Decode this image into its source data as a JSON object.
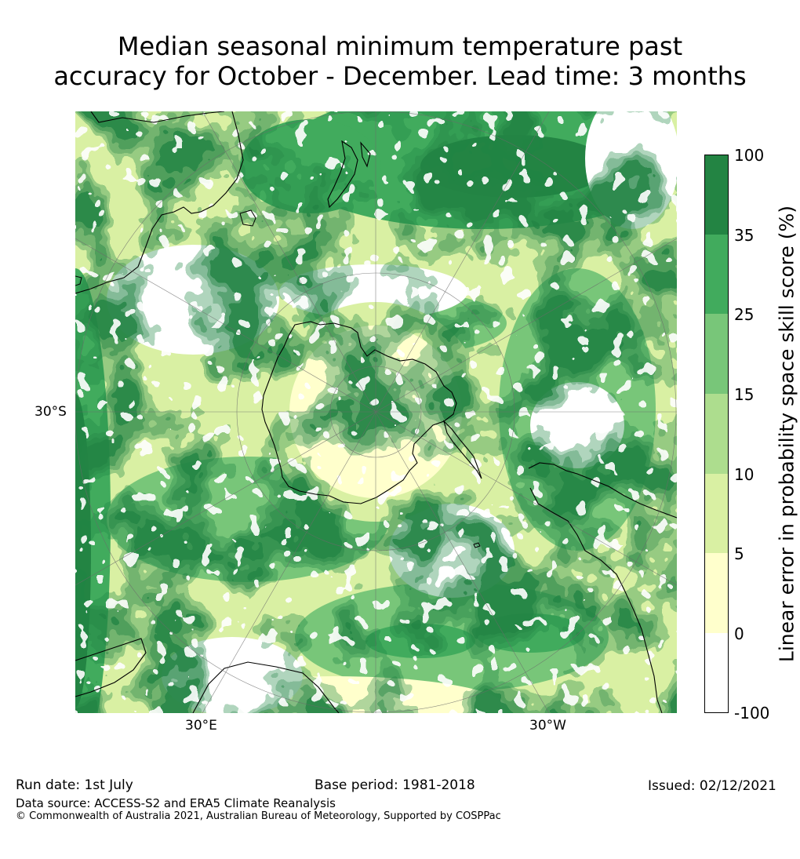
{
  "title": {
    "line1": "Median seasonal minimum temperature past",
    "line2": "accuracy for October - December. Lead time: 3 months"
  },
  "map": {
    "projection": "south-polar-stereographic",
    "axis_labels": {
      "left": "30°S",
      "bottom_left": "30°E",
      "bottom_right": "30°W"
    },
    "colors": {
      "c0": "#ffffff",
      "c1": "#ffffcc",
      "c2": "#d9f0a3",
      "c3": "#addd8e",
      "c4": "#78c679",
      "c5": "#41ab5d",
      "c6": "#238443",
      "coast": "#000000"
    }
  },
  "colorbar": {
    "ticks": [
      "100",
      "35",
      "25",
      "15",
      "10",
      "5",
      "0",
      "-100"
    ],
    "label": "Linear error in probability space skill score (%)",
    "bins": [
      {
        "from": -100,
        "to": 0,
        "color": "#ffffff"
      },
      {
        "from": 0,
        "to": 5,
        "color": "#ffffcc"
      },
      {
        "from": 5,
        "to": 10,
        "color": "#d9f0a3"
      },
      {
        "from": 10,
        "to": 15,
        "color": "#addd8e"
      },
      {
        "from": 15,
        "to": 25,
        "color": "#78c679"
      },
      {
        "from": 25,
        "to": 35,
        "color": "#41ab5d"
      },
      {
        "from": 35,
        "to": 100,
        "color": "#238443"
      }
    ]
  },
  "footer": {
    "run_date": "Run date: 1st July",
    "base_period": "Base period: 1981-2018",
    "issued": "Issued: 02/12/2021",
    "data_source": "Data source: ACCESS-S2 and ERA5 Climate Reanalysis",
    "copyright": "© Commonwealth of Australia 2021, Australian Bureau of Meteorology, Supported by COSPPac"
  }
}
